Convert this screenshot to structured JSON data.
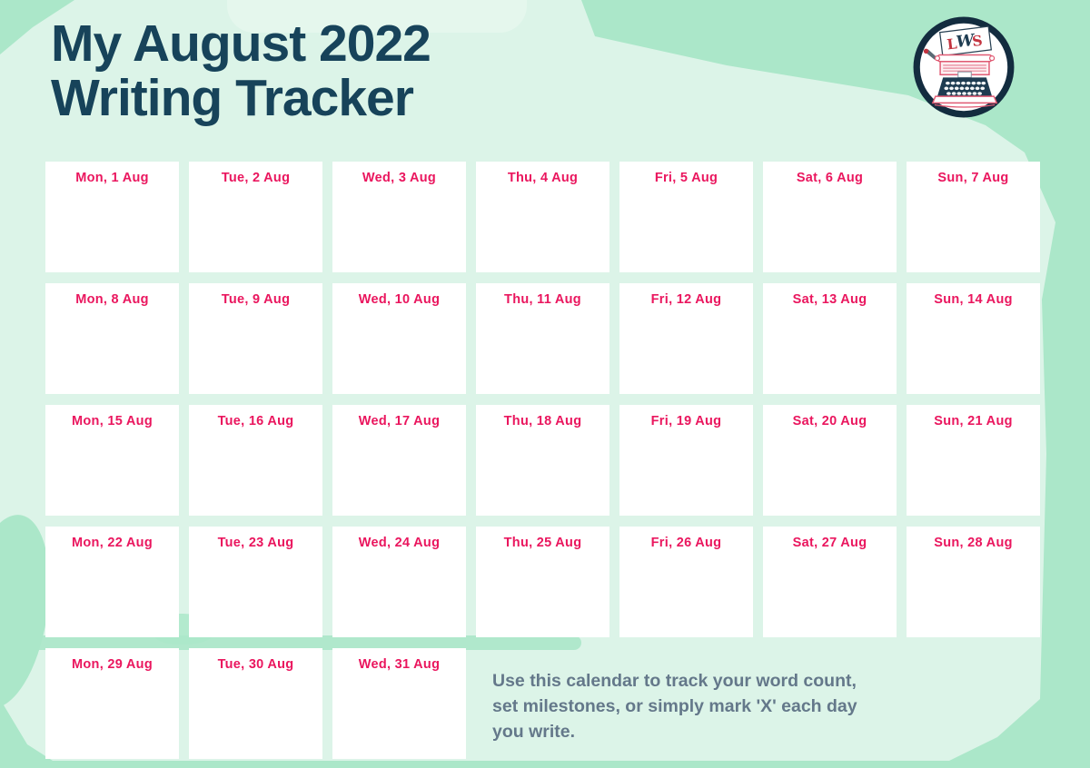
{
  "header": {
    "title_line1": "My August 2022",
    "title_line2": "Writing Tracker"
  },
  "logo": {
    "letters": [
      "L",
      "W",
      "S"
    ]
  },
  "calendar": {
    "days": [
      "Mon, 1 Aug",
      "Tue, 2 Aug",
      "Wed, 3 Aug",
      "Thu, 4 Aug",
      "Fri, 5 Aug",
      "Sat, 6 Aug",
      "Sun, 7 Aug",
      "Mon, 8 Aug",
      "Tue, 9 Aug",
      "Wed, 10 Aug",
      "Thu, 11 Aug",
      "Fri, 12 Aug",
      "Sat, 13 Aug",
      "Sun, 14 Aug",
      "Mon, 15 Aug",
      "Tue, 16 Aug",
      "Wed, 17 Aug",
      "Thu, 18 Aug",
      "Fri, 19 Aug",
      "Sat, 20 Aug",
      "Sun, 21 Aug",
      "Mon, 22 Aug",
      "Tue, 23 Aug",
      "Wed, 24 Aug",
      "Thu, 25 Aug",
      "Fri, 26 Aug",
      "Sat, 27 Aug",
      "Sun, 28 Aug",
      "Mon, 29 Aug",
      "Tue, 30 Aug",
      "Wed, 31 Aug"
    ]
  },
  "note": {
    "lines": [
      "Use this calendar to track your word count,",
      "set milestones, or simply mark 'X' each day",
      "you write."
    ]
  },
  "colors": {
    "background_base": "#abe7c9",
    "background_wash": "#dcf4e8",
    "title_text": "#17435a",
    "date_label": "#ea165e",
    "note_text": "#64788a",
    "card_background": "#ffffff",
    "logo_ring": "#132c3f",
    "logo_red": "#c3333f",
    "logo_pink": "#e05a73"
  }
}
